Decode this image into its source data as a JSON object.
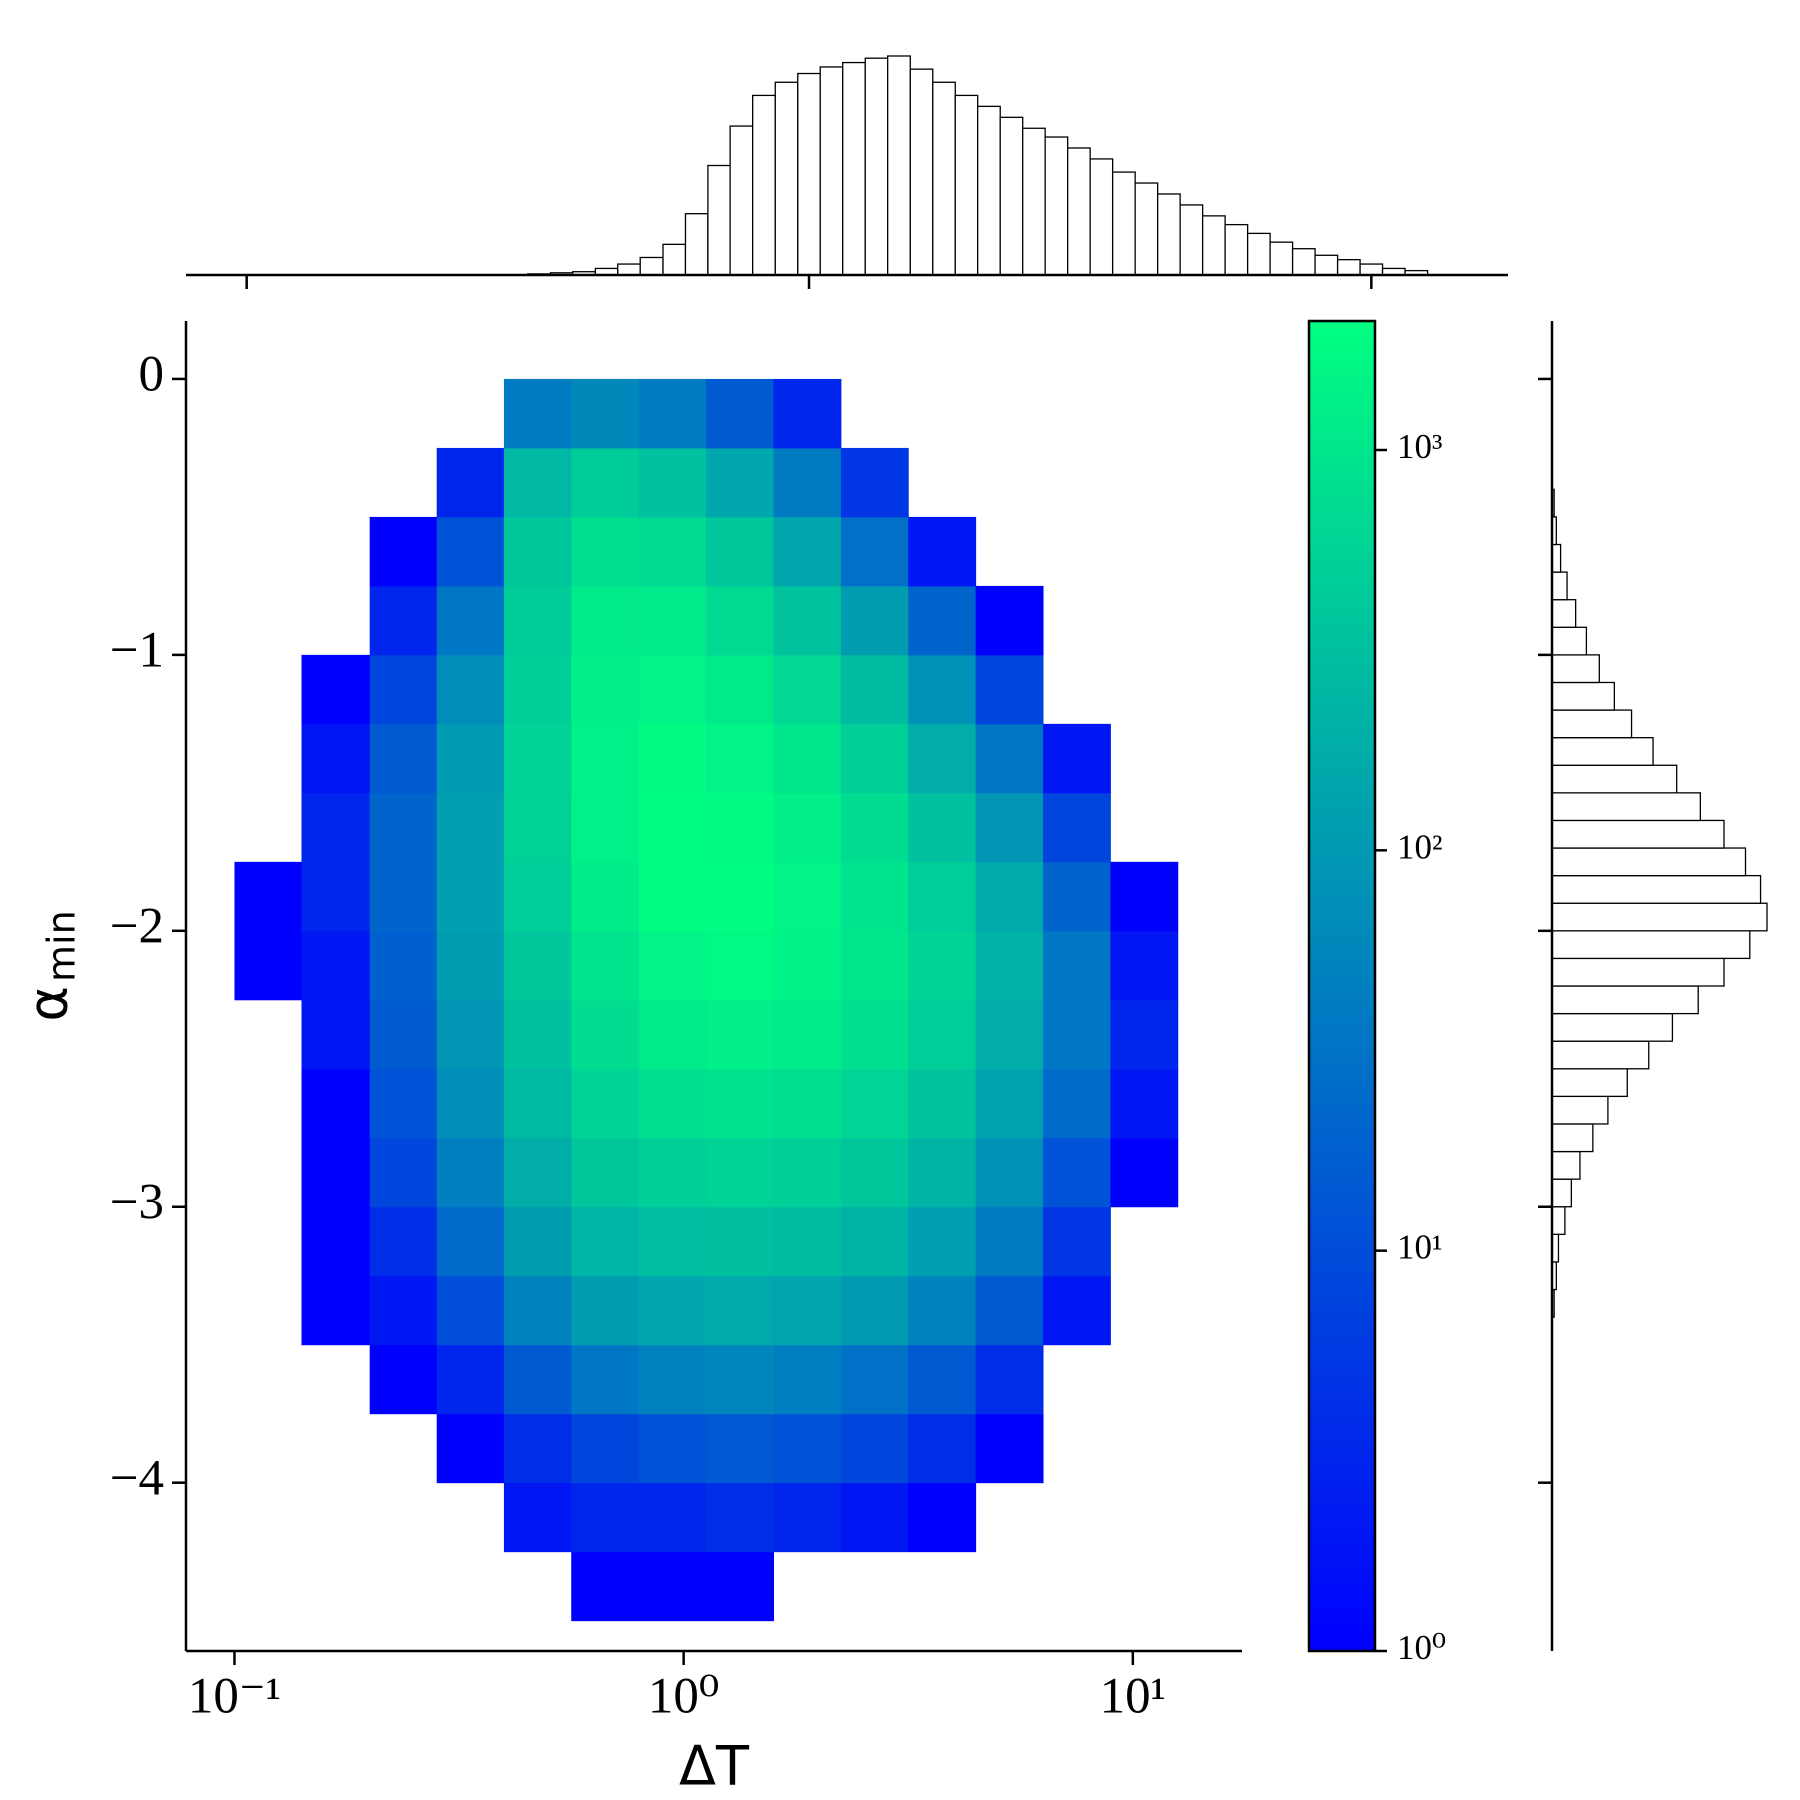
{
  "chart_data": [
    {
      "type": "heatmap",
      "xlabel": "ΔT",
      "ylabel": "α",
      "ylabel_subscript": "min",
      "xscale": "log",
      "xlim": [
        0.078,
        17.5
      ],
      "xticks": [
        {
          "value": 0.1,
          "label": "10⁻¹"
        },
        {
          "value": 1,
          "label": "10⁰"
        },
        {
          "value": 10,
          "label": "10¹"
        }
      ],
      "ylim": [
        -4.61,
        0.21
      ],
      "yticks": [
        {
          "value": -4,
          "label": "−4"
        },
        {
          "value": -3,
          "label": "−3"
        },
        {
          "value": -2,
          "label": "−2"
        },
        {
          "value": -1,
          "label": "−1"
        },
        0
      ],
      "cmap_colors": [
        "#0000ff",
        "#00ff80"
      ],
      "cscale": "log",
      "clim": [
        1,
        2100
      ],
      "cticks": [
        {
          "value": 1,
          "label": "10⁰"
        },
        {
          "value": 10,
          "label": "10¹"
        },
        {
          "value": 100,
          "label": "10²"
        },
        {
          "value": 1000,
          "label": "10³"
        }
      ],
      "x_edges": [
        0.1,
        0.141,
        0.2,
        0.282,
        0.398,
        0.562,
        0.794,
        1.122,
        1.585,
        2.239,
        3.162,
        4.467,
        6.31,
        8.913,
        12.59
      ],
      "y_edges": [
        -4.5,
        -4.25,
        -4.0,
        -3.75,
        -3.5,
        -3.25,
        -3.0,
        -2.75,
        -2.5,
        -2.25,
        -2.0,
        -1.75,
        -1.5,
        -1.25,
        -1.0,
        -0.75,
        -0.5,
        -0.25,
        0.0
      ],
      "values": [
        [
          0,
          0,
          0,
          0,
          0,
          1,
          1,
          1,
          0,
          0,
          0,
          0,
          0,
          0
        ],
        [
          0,
          0,
          0,
          0,
          2,
          3,
          3,
          4,
          3,
          2,
          1,
          0,
          0,
          0
        ],
        [
          0,
          0,
          0,
          1,
          4,
          8,
          12,
          14,
          12,
          8,
          4,
          1,
          0,
          0
        ],
        [
          0,
          0,
          1,
          3,
          15,
          35,
          50,
          55,
          45,
          30,
          15,
          4,
          0,
          0
        ],
        [
          0,
          1,
          2,
          10,
          50,
          110,
          150,
          160,
          140,
          100,
          50,
          15,
          2,
          0
        ],
        [
          0,
          1,
          4,
          25,
          110,
          230,
          300,
          320,
          290,
          220,
          120,
          40,
          5,
          0
        ],
        [
          0,
          1,
          8,
          45,
          180,
          380,
          520,
          560,
          500,
          380,
          220,
          80,
          12,
          1
        ],
        [
          0,
          1,
          12,
          70,
          260,
          560,
          800,
          880,
          800,
          600,
          350,
          130,
          25,
          2
        ],
        [
          0,
          2,
          15,
          90,
          330,
          750,
          1100,
          1300,
          1150,
          850,
          480,
          180,
          35,
          3
        ],
        [
          1,
          2,
          18,
          110,
          400,
          950,
          1500,
          1700,
          1450,
          1000,
          560,
          200,
          35,
          2
        ],
        [
          1,
          3,
          20,
          120,
          480,
          1200,
          1900,
          1900,
          1500,
          950,
          480,
          160,
          20,
          1
        ],
        [
          0,
          3,
          20,
          120,
          550,
          1400,
          2000,
          1800,
          1300,
          750,
          330,
          90,
          8,
          0
        ],
        [
          0,
          2,
          15,
          100,
          560,
          1400,
          1800,
          1500,
          1000,
          500,
          180,
          35,
          2,
          0
        ],
        [
          0,
          1,
          8,
          70,
          520,
          1300,
          1500,
          1100,
          650,
          280,
          80,
          8,
          0,
          0
        ],
        [
          0,
          0,
          3,
          35,
          450,
          1100,
          1100,
          700,
          350,
          110,
          20,
          1,
          0,
          0
        ],
        [
          0,
          0,
          1,
          12,
          380,
          800,
          700,
          380,
          150,
          30,
          2,
          0,
          0,
          0
        ],
        [
          0,
          0,
          0,
          3,
          250,
          450,
          330,
          150,
          40,
          5,
          0,
          0,
          0,
          0
        ],
        [
          0,
          0,
          0,
          0,
          40,
          60,
          40,
          15,
          3,
          0,
          0,
          0,
          0,
          0
        ]
      ]
    },
    {
      "type": "histogram",
      "orientation": "vertical",
      "color": "#ffffff",
      "edgecolor": "#000000",
      "bins": [
        0.316,
        0.347,
        0.38,
        0.417,
        0.457,
        0.501,
        0.55,
        0.603,
        0.661,
        0.724,
        0.794,
        0.871,
        0.955,
        1.047,
        1.148,
        1.259,
        1.38,
        1.514,
        1.66,
        1.82,
        1.995,
        2.188,
        2.399,
        2.63,
        2.884,
        3.162,
        3.467,
        3.802,
        4.169,
        4.571,
        5.012,
        5.495,
        6.026,
        6.607,
        7.244,
        7.943,
        8.71,
        9.55,
        10.47,
        11.48,
        12.59
      ],
      "values": [
        0.5,
        1,
        1.5,
        3,
        5,
        8,
        14,
        28,
        50,
        68,
        82,
        88,
        92,
        95,
        97,
        99,
        100,
        94,
        88,
        82,
        77,
        72,
        67,
        63,
        58,
        53,
        47,
        42,
        37,
        32,
        27,
        23,
        19,
        15,
        12,
        9,
        7,
        5,
        3,
        2
      ]
    },
    {
      "type": "histogram",
      "orientation": "horizontal",
      "color": "#ffffff",
      "edgecolor": "#000000",
      "bins": [
        -3.4,
        -3.3,
        -3.2,
        -3.1,
        -3.0,
        -2.9,
        -2.8,
        -2.7,
        -2.6,
        -2.5,
        -2.4,
        -2.3,
        -2.2,
        -2.1,
        -2.0,
        -1.9,
        -1.8,
        -1.7,
        -1.6,
        -1.5,
        -1.4,
        -1.3,
        -1.2,
        -1.1,
        -1.0,
        -0.9,
        -0.8,
        -0.7,
        -0.6,
        -0.5,
        -0.4
      ],
      "values": [
        1,
        2,
        3,
        6,
        9,
        13,
        19,
        26,
        35,
        45,
        56,
        68,
        80,
        92,
        100,
        97,
        90,
        80,
        69,
        58,
        47,
        37,
        29,
        22,
        16,
        11,
        7,
        4,
        2,
        1
      ]
    }
  ]
}
